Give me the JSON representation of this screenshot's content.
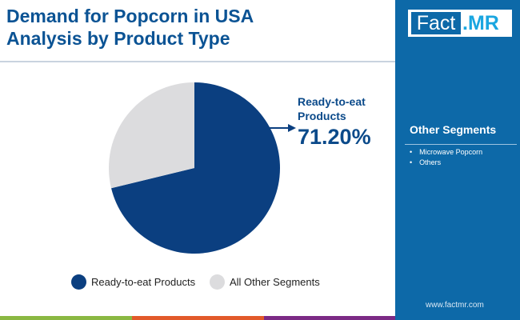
{
  "title": [
    "Demand for Popcorn in USA",
    "Analysis by Product Type"
  ],
  "logo": {
    "left": "Fact",
    "right": ".MR"
  },
  "sidebar": {
    "heading": "Other Segments",
    "items": [
      "Microwave Popcorn",
      "Others"
    ],
    "url": "www.factmr.com"
  },
  "colors": {
    "primary": "#0b3f80",
    "secondary": "#dcdcde",
    "panel": "#0d69a8",
    "bars": [
      "#8ab842",
      "#e25a2a",
      "#7b2a85"
    ]
  },
  "chart_data": {
    "type": "pie",
    "slices": [
      {
        "name": "Ready-to-eat Products",
        "value": 71.2
      },
      {
        "name": "All Other Segments",
        "value": 28.8
      }
    ],
    "callout": {
      "label": "Ready-to-eat Products",
      "value": "71.20%"
    },
    "legend": "bottom"
  }
}
